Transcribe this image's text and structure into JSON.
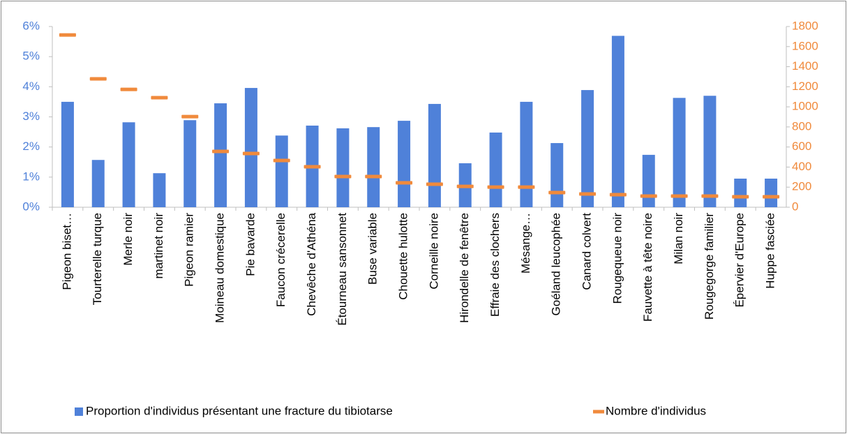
{
  "chart_data": {
    "type": "bar_marker",
    "categories": [
      "Pigeon biset…",
      "Tourterelle turque",
      "Merle noir",
      "martinet noir",
      "Pigeon ramier",
      "Moineau domestique",
      "Pie bavarde",
      "Faucon crécerelle",
      "Chevêche d'Athéna",
      "Étourneau sansonnet",
      "Buse variable",
      "Chouette hulotte",
      "Corneille noire",
      "Hirondelle de fenêtre",
      "Effraie des clochers",
      "Mésange…",
      "Goéland leucophée",
      "Canard colvert",
      "Rougequeue noir",
      "Fauvette à tête noire",
      "Milan noir",
      "Rougegorge familier",
      "Épervier d'Europe",
      "Huppe fasciée"
    ],
    "series": [
      {
        "name": "Proportion d'individus présentant une fracture du tibiotarse",
        "color": "#4f81d9",
        "axis": "y",
        "values": [
          3.5,
          1.57,
          2.82,
          1.13,
          2.89,
          3.45,
          3.96,
          2.38,
          2.71,
          2.62,
          2.66,
          2.87,
          3.43,
          1.46,
          2.48,
          3.5,
          2.13,
          3.89,
          5.69,
          1.74,
          3.63,
          3.7,
          0.95,
          0.95
        ]
      },
      {
        "name": "Nombre d'individus",
        "color": "#f08a3c",
        "axis": "y2",
        "values": [
          1716,
          1279,
          1174,
          1091,
          903,
          556,
          535,
          466,
          403,
          306,
          306,
          243,
          229,
          208,
          201,
          201,
          146,
          132,
          125,
          111,
          111,
          111,
          104,
          104
        ]
      }
    ],
    "ylim": [
      0,
      6
    ],
    "yticks": [
      {
        "value": 0,
        "label": "0%"
      },
      {
        "value": 1,
        "label": "1%"
      },
      {
        "value": 2,
        "label": "2%"
      },
      {
        "value": 3,
        "label": "3%"
      },
      {
        "value": 4,
        "label": "4%"
      },
      {
        "value": 5,
        "label": "5%"
      },
      {
        "value": 6,
        "label": "6%"
      }
    ],
    "y2lim": [
      0,
      1800
    ],
    "y2ticks": [
      0,
      200,
      400,
      600,
      800,
      1000,
      1200,
      1400,
      1600,
      1800
    ],
    "ytick_color": "#4f81d9",
    "y2tick_color": "#f08a3c",
    "legend": "bottom"
  }
}
